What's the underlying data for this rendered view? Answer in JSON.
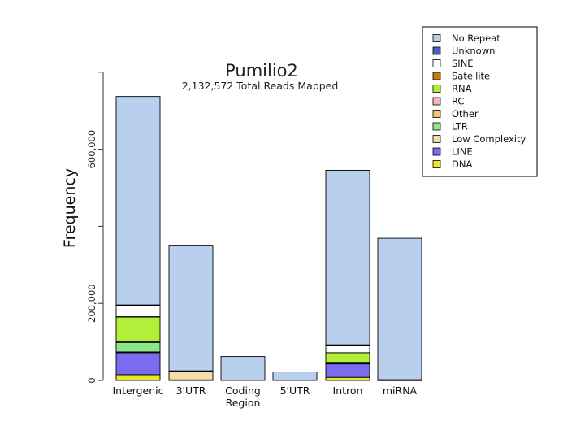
{
  "chart_data": {
    "type": "bar",
    "stacked": true,
    "title": "Pumilio2",
    "subtitle": "2,132,572 Total Reads Mapped",
    "xlabel": "",
    "ylabel": "Frequency",
    "ylim": [
      0,
      800000
    ],
    "yticks": [
      0,
      200000,
      400000,
      600000,
      800000
    ],
    "ytick_labels": [
      "0",
      "200,000",
      "",
      "600,000",
      ""
    ],
    "categories": [
      {
        "label": "Intergenic"
      },
      {
        "label": "3'UTR"
      },
      {
        "label": "Coding",
        "label2": "Region"
      },
      {
        "label": "5'UTR"
      },
      {
        "label": "Intron"
      },
      {
        "label": "miRNA"
      }
    ],
    "legend_position": "top-right",
    "grid": false,
    "series": [
      {
        "name": "DNA",
        "color": "#e8e82a",
        "values": [
          15000,
          1000,
          0,
          0,
          8000,
          0
        ]
      },
      {
        "name": "LINE",
        "color": "#7b6bee",
        "values": [
          57000,
          500,
          0,
          0,
          35000,
          500
        ]
      },
      {
        "name": "Low Complexity",
        "color": "#f5dca8",
        "values": [
          2000,
          22000,
          0,
          0,
          1000,
          1500
        ]
      },
      {
        "name": "LTR",
        "color": "#8ee68a",
        "values": [
          25000,
          500,
          0,
          0,
          3000,
          0
        ]
      },
      {
        "name": "Other",
        "color": "#f0c864",
        "values": [
          500,
          0,
          0,
          0,
          0,
          0
        ]
      },
      {
        "name": "RC",
        "color": "#f5b4bc",
        "values": [
          500,
          0,
          0,
          0,
          0,
          0
        ]
      },
      {
        "name": "RNA",
        "color": "#b2ef3a",
        "values": [
          65000,
          500,
          0,
          0,
          25000,
          0
        ]
      },
      {
        "name": "Satellite",
        "color": "#c47a10",
        "values": [
          500,
          0,
          0,
          0,
          0,
          0
        ]
      },
      {
        "name": "SINE",
        "color": "#ffffff",
        "values": [
          30000,
          500,
          0,
          0,
          20000,
          0
        ]
      },
      {
        "name": "Unknown",
        "color": "#4463c8",
        "values": [
          500,
          0,
          0,
          0,
          500,
          0
        ]
      },
      {
        "name": "No Repeat",
        "color": "#b8d0ee",
        "values": [
          541000,
          326000,
          62000,
          22000,
          453000,
          367000
        ]
      }
    ],
    "legend_order": [
      "No Repeat",
      "Unknown",
      "SINE",
      "Satellite",
      "RNA",
      "RC",
      "Other",
      "LTR",
      "Low Complexity",
      "LINE",
      "DNA"
    ]
  }
}
